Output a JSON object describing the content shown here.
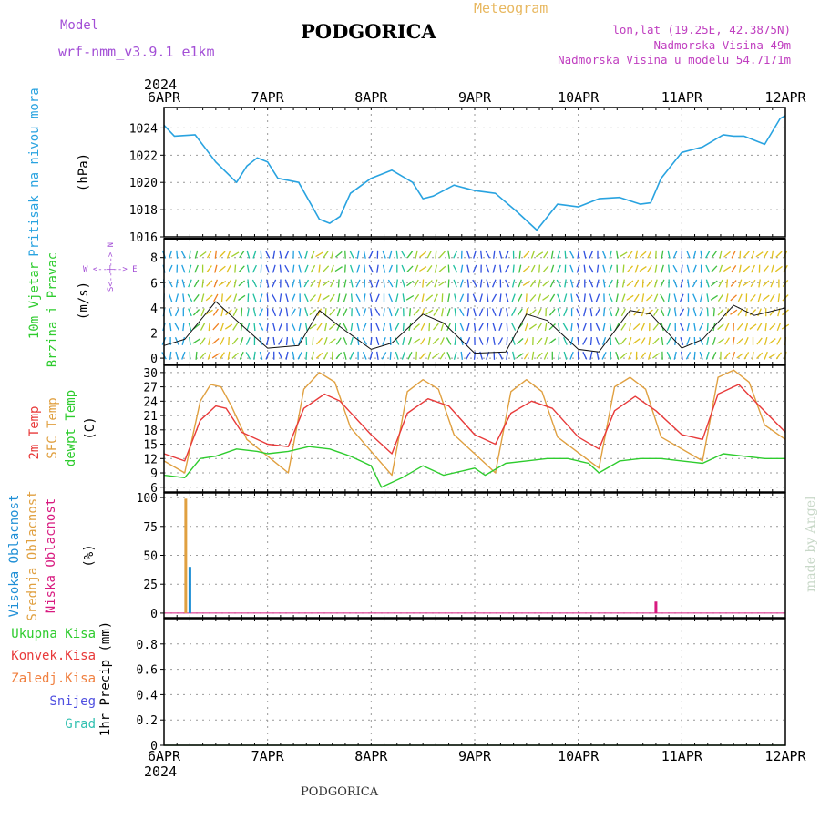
{
  "header": {
    "model_label": "Model",
    "model_name": "wrf-nmm_v3.9.1 e1km",
    "city_title": "PODGORICA",
    "meteogram_label": "Meteogram",
    "lonlat": "lon,lat (19.25E, 42.3875N)",
    "altitude": "Nadmorska Visina 49m",
    "model_altitude": "Nadmorska Visina u modelu 54.7171m",
    "year_top": "2024",
    "year_bottom": "2024",
    "footer_city": "PODGORICA",
    "credit": "made by Angel"
  },
  "colors": {
    "pressure": "#29a3e0",
    "temp2m": "#e83a3a",
    "sfc": "#e0a040",
    "dew": "#2ecc2e",
    "high_cloud": "#1f8fd6",
    "mid_cloud": "#e0a040",
    "low_cloud": "#d81b80",
    "purple": "#a34fd6",
    "credit": "#c8d8c8"
  },
  "x_axis": {
    "labels": [
      "6APR",
      "7APR",
      "8APR",
      "9APR",
      "10APR",
      "11APR",
      "12APR"
    ]
  },
  "panels": {
    "pressure": {
      "labels": [
        "Pritisak na nivou mora"
      ],
      "unit": "(hPa)",
      "yticks": [
        1016,
        1018,
        1020,
        1022,
        1024
      ]
    },
    "wind": {
      "labels": [
        "10m Vjetar",
        "Brzina i Pravac"
      ],
      "unit": "(m/s)",
      "yticks": [
        0,
        2,
        4,
        6,
        8
      ],
      "compass": {
        "n": "N",
        "s": "S",
        "w": "W",
        "e": "E"
      }
    },
    "temp": {
      "labels": [
        "2m Temp",
        "SFC Temp",
        "dewpt Temp"
      ],
      "unit": "(C)",
      "yticks": [
        6,
        9,
        12,
        15,
        18,
        21,
        24,
        27,
        30
      ]
    },
    "cloud": {
      "labels": [
        "Visoka Oblacnost",
        "Srednja Oblacnost",
        "Niska Oblacnost"
      ],
      "unit": "(%)",
      "yticks": [
        0,
        25,
        50,
        75,
        100
      ]
    },
    "precip": {
      "labels": [
        "Ukupna Kisa",
        "Konvek.Kisa",
        "Zaledj.Kisa",
        "Snijeg",
        "Grad"
      ],
      "unit": "1hr Precip (mm)",
      "yticks": [
        "0",
        "0.2",
        "0.4",
        "0.6",
        "0.8"
      ]
    }
  },
  "chart_data": [
    {
      "type": "line",
      "ylabel": "Pritisak na nivou mora (hPa)",
      "ylim": [
        1016,
        1025.5
      ],
      "series": [
        {
          "name": "Pritisak na nivou mora",
          "x": [
            0,
            0.1,
            0.3,
            0.5,
            0.7,
            0.8,
            0.9,
            1.0,
            1.1,
            1.3,
            1.5,
            1.6,
            1.7,
            1.8,
            2.0,
            2.2,
            2.4,
            2.5,
            2.6,
            2.8,
            2.9,
            3.0,
            3.2,
            3.4,
            3.6,
            3.8,
            4.0,
            4.2,
            4.4,
            4.6,
            4.7,
            4.8,
            5.0,
            5.2,
            5.4,
            5.5,
            5.6,
            5.8,
            5.95,
            6.0
          ],
          "values": [
            1024.2,
            1023.4,
            1023.5,
            1021.5,
            1020.0,
            1021.2,
            1021.8,
            1021.5,
            1020.3,
            1020.0,
            1017.3,
            1017.0,
            1017.5,
            1019.2,
            1020.3,
            1020.9,
            1020.0,
            1018.8,
            1019.0,
            1019.8,
            1019.6,
            1019.4,
            1019.2,
            1017.9,
            1016.5,
            1018.4,
            1018.2,
            1018.8,
            1018.9,
            1018.4,
            1018.5,
            1020.3,
            1022.2,
            1022.6,
            1023.5,
            1023.4,
            1023.4,
            1022.8,
            1024.7,
            1024.9
          ]
        }
      ]
    },
    {
      "type": "line",
      "ylabel": "10m Vjetar Brzina i Pravac (m/s)",
      "ylim": [
        -0.5,
        9.5
      ],
      "series": [
        {
          "name": "Brzina",
          "x": [
            0,
            0.2,
            0.4,
            0.5,
            0.7,
            1.0,
            1.3,
            1.5,
            1.7,
            2.0,
            2.2,
            2.5,
            2.7,
            3.0,
            3.3,
            3.5,
            3.7,
            4.0,
            4.2,
            4.5,
            4.7,
            5.0,
            5.2,
            5.5,
            5.7,
            6.0
          ],
          "values": [
            1.0,
            1.5,
            3.5,
            4.5,
            3.0,
            0.8,
            1.0,
            3.8,
            2.5,
            0.7,
            1.2,
            3.5,
            2.8,
            0.4,
            0.5,
            3.5,
            3.0,
            0.7,
            0.5,
            3.8,
            3.5,
            0.8,
            1.5,
            4.2,
            3.4,
            4.0
          ]
        }
      ]
    },
    {
      "type": "line",
      "ylabel": "(C)",
      "ylim": [
        5,
        31.5
      ],
      "series": [
        {
          "name": "2m Temp",
          "x": [
            0,
            0.2,
            0.35,
            0.5,
            0.6,
            0.75,
            1.0,
            1.2,
            1.35,
            1.55,
            1.7,
            2.0,
            2.2,
            2.35,
            2.55,
            2.75,
            3.0,
            3.2,
            3.35,
            3.55,
            3.75,
            4.0,
            4.2,
            4.35,
            4.55,
            4.75,
            5.0,
            5.2,
            5.35,
            5.55,
            5.75,
            6.0
          ],
          "values": [
            13.0,
            11.5,
            20.0,
            23.0,
            22.5,
            17.5,
            15.0,
            14.5,
            22.5,
            25.5,
            24.0,
            17.0,
            13.0,
            21.5,
            24.5,
            23.0,
            17.0,
            15.0,
            21.5,
            24.0,
            22.5,
            16.5,
            14.0,
            22.0,
            25.0,
            22.0,
            17.0,
            16.0,
            25.5,
            27.5,
            23.0,
            17.5
          ]
        },
        {
          "name": "SFC Temp",
          "x": [
            0,
            0.2,
            0.35,
            0.45,
            0.55,
            0.65,
            0.8,
            1.2,
            1.35,
            1.5,
            1.65,
            1.8,
            2.2,
            2.35,
            2.5,
            2.65,
            2.8,
            3.2,
            3.35,
            3.5,
            3.65,
            3.8,
            4.2,
            4.35,
            4.5,
            4.65,
            4.8,
            5.2,
            5.35,
            5.5,
            5.65,
            5.8,
            6.0
          ],
          "values": [
            11.5,
            9.0,
            24.0,
            27.5,
            27.0,
            23.0,
            16.0,
            9.0,
            26.5,
            30.0,
            28.0,
            18.5,
            8.5,
            26.0,
            28.5,
            26.5,
            17.0,
            9.0,
            26.0,
            28.5,
            26.0,
            16.5,
            10.0,
            27.0,
            29.0,
            26.5,
            16.5,
            11.5,
            29.0,
            30.5,
            28.0,
            19.0,
            16.0
          ]
        },
        {
          "name": "dewpt Temp",
          "x": [
            0,
            0.2,
            0.35,
            0.5,
            0.7,
            0.9,
            1.0,
            1.2,
            1.4,
            1.6,
            1.8,
            2.0,
            2.1,
            2.3,
            2.5,
            2.7,
            2.9,
            3.0,
            3.1,
            3.3,
            3.5,
            3.7,
            3.9,
            4.1,
            4.2,
            4.4,
            4.6,
            4.8,
            5.0,
            5.2,
            5.4,
            5.6,
            5.8,
            6.0
          ],
          "values": [
            8.5,
            8.0,
            12.0,
            12.5,
            14.0,
            13.5,
            13.0,
            13.5,
            14.5,
            14.0,
            12.5,
            10.5,
            6.0,
            8.0,
            10.5,
            8.5,
            9.5,
            10.0,
            8.5,
            11.0,
            11.5,
            12.0,
            12.0,
            11.0,
            9.0,
            11.5,
            12.0,
            12.0,
            11.5,
            11.0,
            13.0,
            12.5,
            12.0,
            12.0
          ]
        }
      ]
    },
    {
      "type": "bar",
      "ylabel": "(%)",
      "ylim": [
        0,
        100
      ],
      "series": [
        {
          "name": "Visoka Oblacnost",
          "x": [
            0.25
          ],
          "values": [
            40
          ]
        },
        {
          "name": "Srednja Oblacnost",
          "x": [
            0.21
          ],
          "values": [
            99
          ]
        },
        {
          "name": "Niska Oblacnost",
          "x": [
            4.75
          ],
          "values": [
            10
          ]
        }
      ]
    },
    {
      "type": "line",
      "ylabel": "1hr Precip (mm)",
      "ylim": [
        0,
        1
      ],
      "series": [
        {
          "name": "Ukupna Kisa",
          "x": [
            0,
            6
          ],
          "values": [
            0,
            0
          ]
        }
      ]
    }
  ]
}
